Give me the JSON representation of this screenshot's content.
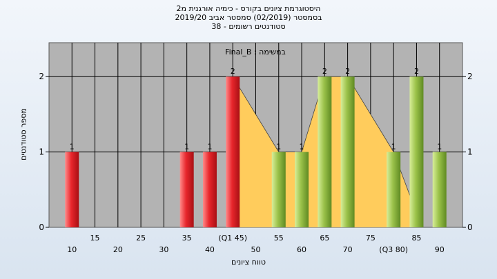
{
  "chart_data": {
    "type": "bar",
    "title_lines": [
      "היסטוגרמת ציונים בקורס - כימיה אורגנית מ2",
      "בסמסטר  (02/2019)  סמסטר אביב 2019/20",
      "סטודנטים רשומים - 38"
    ],
    "subtitle": "Final_B : במשימה",
    "xlabel": "טווח ציונים",
    "ylabel": "מספר סטודנטים",
    "ylim": [
      0,
      2.45
    ],
    "yticks": [
      0,
      1,
      2
    ],
    "grid": true,
    "xticks_row1": [
      {
        "x": 15,
        "label": "15"
      },
      {
        "x": 25,
        "label": "25"
      },
      {
        "x": 35,
        "label": "35"
      },
      {
        "x": 45,
        "label": "(Q1 45)"
      },
      {
        "x": 55,
        "label": "55"
      },
      {
        "x": 65,
        "label": "65"
      },
      {
        "x": 75,
        "label": "75"
      },
      {
        "x": 85,
        "label": "85"
      }
    ],
    "xticks_row2": [
      {
        "x": 10,
        "label": "10"
      },
      {
        "x": 20,
        "label": "20"
      },
      {
        "x": 30,
        "label": "30"
      },
      {
        "x": 40,
        "label": "40"
      },
      {
        "x": 50,
        "label": "50"
      },
      {
        "x": 60,
        "label": "60"
      },
      {
        "x": 70,
        "label": "70"
      },
      {
        "x": 80,
        "label": "(Q3 80)"
      },
      {
        "x": 90,
        "label": "90"
      }
    ],
    "bars": [
      {
        "x": 10,
        "value": 1,
        "group": "red"
      },
      {
        "x": 35,
        "value": 1,
        "group": "red"
      },
      {
        "x": 40,
        "value": 1,
        "group": "red"
      },
      {
        "x": 45,
        "value": 2,
        "group": "red"
      },
      {
        "x": 55,
        "value": 1,
        "group": "green"
      },
      {
        "x": 60,
        "value": 1,
        "group": "green"
      },
      {
        "x": 65,
        "value": 2,
        "group": "green"
      },
      {
        "x": 70,
        "value": 2,
        "group": "green"
      },
      {
        "x": 80,
        "value": 1,
        "group": "green"
      },
      {
        "x": 85,
        "value": 2,
        "group": "green"
      },
      {
        "x": 90,
        "value": 1,
        "group": "green"
      }
    ],
    "area": [
      {
        "x": 45,
        "y": 2
      },
      {
        "x": 55,
        "y": 1
      },
      {
        "x": 60,
        "y": 1
      },
      {
        "x": 65,
        "y": 2
      },
      {
        "x": 70,
        "y": 2
      },
      {
        "x": 80,
        "y": 1
      },
      {
        "x": 84,
        "y": 0.35
      }
    ],
    "colors": {
      "plot_bg": "#b3b3b3",
      "area": "#ffcc5c",
      "red_light": "#ff8a8a",
      "red": "#e8262c",
      "red_dark": "#a80f14",
      "green_light": "#d8ee9a",
      "green": "#9bc24a",
      "green_dark": "#5f8a22"
    }
  }
}
